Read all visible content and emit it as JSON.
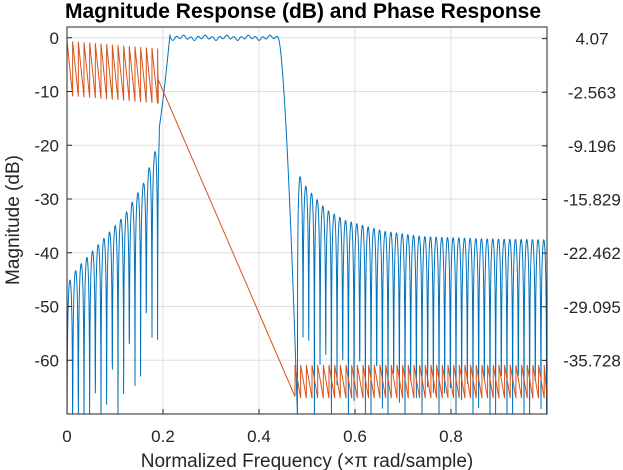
{
  "chart_data": {
    "type": "line",
    "title": "Magnitude Response (dB) and Phase Response",
    "xlabel": "Normalized Frequency (×π rad/sample)",
    "ylabel_left": "Magnitude (dB)",
    "ylabel_right": "",
    "xlim": [
      0,
      1
    ],
    "ylim_left": [
      -70,
      2
    ],
    "ylim_right": [
      -42.36,
      5.51
    ],
    "grid": true,
    "legend": "none",
    "x_ticks": [
      "0",
      "0.2",
      "0.4",
      "0.6",
      "0.8"
    ],
    "x_tick_values": [
      0,
      0.2,
      0.4,
      0.6,
      0.8
    ],
    "y_left_ticks": [
      "0",
      "-10",
      "-20",
      "-30",
      "-40",
      "-50",
      "-60"
    ],
    "y_left_tick_values": [
      0,
      -10,
      -20,
      -30,
      -40,
      -50,
      -60
    ],
    "y_right_ticks": [
      "4.07",
      "-2.563",
      "-9.196",
      "-15.829",
      "-22.462",
      "-29.095",
      "-35.728"
    ],
    "y_right_tick_values": [
      4.07,
      -2.563,
      -9.196,
      -15.829,
      -22.462,
      -29.095,
      -35.728
    ],
    "series": [
      {
        "axis": "left",
        "color": "#0072BD",
        "description_values": {
          "passband": [
            0.215,
            0.44
          ],
          "passband_level_db": 0,
          "transition_low": [
            0.18,
            0.215
          ],
          "transition_high": [
            0.44,
            0.48
          ],
          "stopband_lobes_low": [
            [
              0.0,
              -46
            ],
            [
              0.02,
              -43
            ],
            [
              0.04,
              -41
            ],
            [
              0.06,
              -39
            ],
            [
              0.08,
              -37
            ],
            [
              0.1,
              -35
            ],
            [
              0.12,
              -33
            ],
            [
              0.14,
              -30
            ],
            [
              0.16,
              -27
            ],
            [
              0.18,
              -22
            ]
          ],
          "stopband_lobes_high": [
            [
              0.48,
              -25
            ],
            [
              0.5,
              -28
            ],
            [
              0.52,
              -30
            ],
            [
              0.54,
              -32
            ],
            [
              0.56,
              -33
            ],
            [
              0.58,
              -34
            ],
            [
              0.6,
              -34.5
            ],
            [
              0.62,
              -35
            ],
            [
              0.64,
              -35.5
            ],
            [
              0.66,
              -36
            ],
            [
              0.7,
              -36.5
            ],
            [
              0.74,
              -37
            ],
            [
              0.8,
              -37.2
            ],
            [
              0.86,
              -37.4
            ],
            [
              0.92,
              -37.5
            ],
            [
              1.0,
              -37.6
            ]
          ]
        }
      },
      {
        "axis": "right",
        "color": "#D95319",
        "description_values": {
          "wrap_low_range": [
            0.0,
            0.19
          ],
          "wrap_high_range": [
            0.475,
            1.0
          ],
          "linear_segment": [
            [
              0.19,
              -1.0
            ],
            [
              0.475,
              -40.2
            ]
          ]
        }
      }
    ]
  }
}
